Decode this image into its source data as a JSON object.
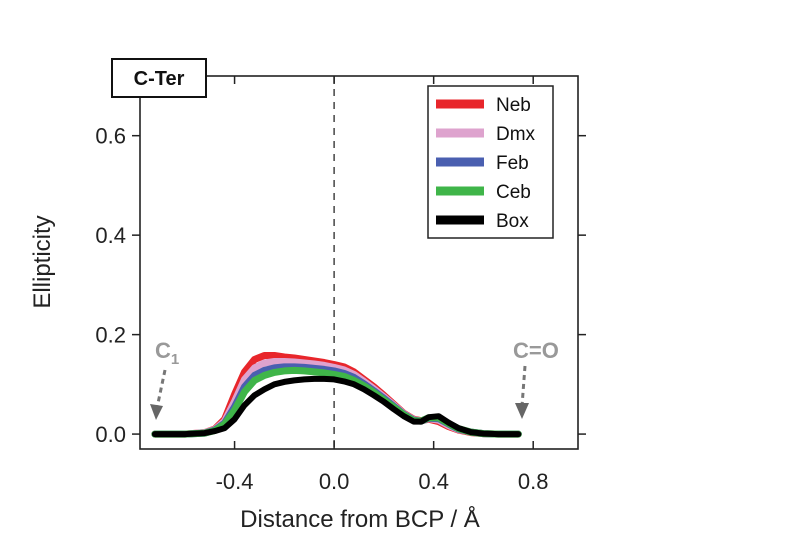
{
  "chart_data": {
    "type": "line",
    "panel_label": "C-Ter",
    "xlabel": "Distance from BCP  /  Å",
    "ylabel": "Ellipticity",
    "xlim": [
      -0.78,
      0.98
    ],
    "ylim": [
      -0.03,
      0.72
    ],
    "x_ticks": [
      -0.4,
      0.0,
      0.4,
      0.8
    ],
    "x_tick_labels": [
      "-0.4",
      "0.0",
      "0.4",
      "0.8"
    ],
    "y_ticks": [
      0.0,
      0.2,
      0.4,
      0.6
    ],
    "y_tick_labels": [
      "0.0",
      "0.2",
      "0.4",
      "0.6"
    ],
    "vline_x": 0.0,
    "legend_position": "top-right",
    "annotations": [
      {
        "text": "C",
        "subscript": "1",
        "x": -0.7,
        "y": 0.0
      },
      {
        "text": "C=O",
        "x": 0.74,
        "y": 0.0
      }
    ],
    "series": [
      {
        "name": "Neb",
        "color": "#e8262b",
        "x": [
          -0.72,
          -0.6,
          -0.52,
          -0.48,
          -0.44,
          -0.4,
          -0.36,
          -0.32,
          -0.28,
          -0.24,
          -0.2,
          -0.16,
          -0.12,
          -0.08,
          -0.04,
          0.0,
          0.04,
          0.08,
          0.12,
          0.16,
          0.2,
          0.24,
          0.28,
          0.32,
          0.35,
          0.38,
          0.42,
          0.46,
          0.5,
          0.55,
          0.6,
          0.66,
          0.74
        ],
        "y": [
          0.0,
          0.0,
          0.003,
          0.01,
          0.03,
          0.08,
          0.125,
          0.15,
          0.158,
          0.158,
          0.155,
          0.153,
          0.15,
          0.147,
          0.144,
          0.14,
          0.135,
          0.125,
          0.11,
          0.095,
          0.078,
          0.06,
          0.042,
          0.03,
          0.027,
          0.03,
          0.025,
          0.015,
          0.008,
          0.003,
          0.001,
          0.0,
          0.0
        ]
      },
      {
        "name": "Dmx",
        "color": "#dea3ce",
        "x": [
          -0.72,
          -0.6,
          -0.52,
          -0.48,
          -0.44,
          -0.4,
          -0.36,
          -0.32,
          -0.28,
          -0.24,
          -0.2,
          -0.16,
          -0.12,
          -0.08,
          -0.04,
          0.0,
          0.04,
          0.08,
          0.12,
          0.16,
          0.2,
          0.24,
          0.28,
          0.32,
          0.35,
          0.38,
          0.42,
          0.46,
          0.5,
          0.55,
          0.6,
          0.66,
          0.74
        ],
        "y": [
          0.0,
          0.0,
          0.003,
          0.009,
          0.026,
          0.066,
          0.11,
          0.133,
          0.143,
          0.146,
          0.146,
          0.145,
          0.143,
          0.141,
          0.138,
          0.134,
          0.129,
          0.12,
          0.106,
          0.091,
          0.075,
          0.058,
          0.041,
          0.029,
          0.026,
          0.031,
          0.028,
          0.017,
          0.009,
          0.004,
          0.001,
          0.0,
          0.0
        ]
      },
      {
        "name": "Feb",
        "color": "#4a5fb0",
        "x": [
          -0.72,
          -0.6,
          -0.52,
          -0.48,
          -0.44,
          -0.4,
          -0.36,
          -0.32,
          -0.28,
          -0.24,
          -0.2,
          -0.16,
          -0.12,
          -0.08,
          -0.04,
          0.0,
          0.04,
          0.08,
          0.12,
          0.16,
          0.2,
          0.24,
          0.28,
          0.32,
          0.35,
          0.38,
          0.42,
          0.46,
          0.5,
          0.55,
          0.6,
          0.66,
          0.74
        ],
        "y": [
          0.0,
          0.0,
          0.002,
          0.008,
          0.022,
          0.055,
          0.095,
          0.118,
          0.128,
          0.133,
          0.135,
          0.135,
          0.134,
          0.132,
          0.13,
          0.127,
          0.122,
          0.114,
          0.101,
          0.087,
          0.072,
          0.056,
          0.04,
          0.028,
          0.026,
          0.032,
          0.031,
          0.02,
          0.01,
          0.004,
          0.001,
          0.0,
          0.0
        ]
      },
      {
        "name": "Ceb",
        "color": "#3fb549",
        "x": [
          -0.72,
          -0.6,
          -0.52,
          -0.48,
          -0.44,
          -0.4,
          -0.36,
          -0.32,
          -0.28,
          -0.24,
          -0.2,
          -0.16,
          -0.12,
          -0.08,
          -0.04,
          0.0,
          0.04,
          0.08,
          0.12,
          0.16,
          0.2,
          0.24,
          0.28,
          0.32,
          0.35,
          0.38,
          0.42,
          0.46,
          0.5,
          0.55,
          0.6,
          0.66,
          0.74
        ],
        "y": [
          0.0,
          0.0,
          0.002,
          0.007,
          0.02,
          0.048,
          0.085,
          0.108,
          0.118,
          0.124,
          0.127,
          0.128,
          0.127,
          0.125,
          0.123,
          0.12,
          0.116,
          0.108,
          0.097,
          0.084,
          0.069,
          0.054,
          0.039,
          0.027,
          0.026,
          0.033,
          0.033,
          0.021,
          0.011,
          0.004,
          0.001,
          0.0,
          0.0
        ]
      },
      {
        "name": "Box",
        "color": "#000000",
        "x": [
          -0.72,
          -0.6,
          -0.52,
          -0.48,
          -0.44,
          -0.4,
          -0.36,
          -0.32,
          -0.28,
          -0.24,
          -0.2,
          -0.16,
          -0.12,
          -0.08,
          -0.04,
          0.0,
          0.04,
          0.08,
          0.12,
          0.16,
          0.2,
          0.24,
          0.28,
          0.32,
          0.35,
          0.38,
          0.42,
          0.46,
          0.5,
          0.55,
          0.6,
          0.66,
          0.74
        ],
        "y": [
          0.0,
          0.0,
          0.002,
          0.006,
          0.012,
          0.03,
          0.058,
          0.078,
          0.09,
          0.1,
          0.105,
          0.108,
          0.11,
          0.111,
          0.111,
          0.11,
          0.106,
          0.1,
          0.09,
          0.078,
          0.065,
          0.05,
          0.036,
          0.025,
          0.025,
          0.034,
          0.036,
          0.023,
          0.012,
          0.004,
          0.001,
          0.0,
          0.0
        ]
      }
    ]
  }
}
